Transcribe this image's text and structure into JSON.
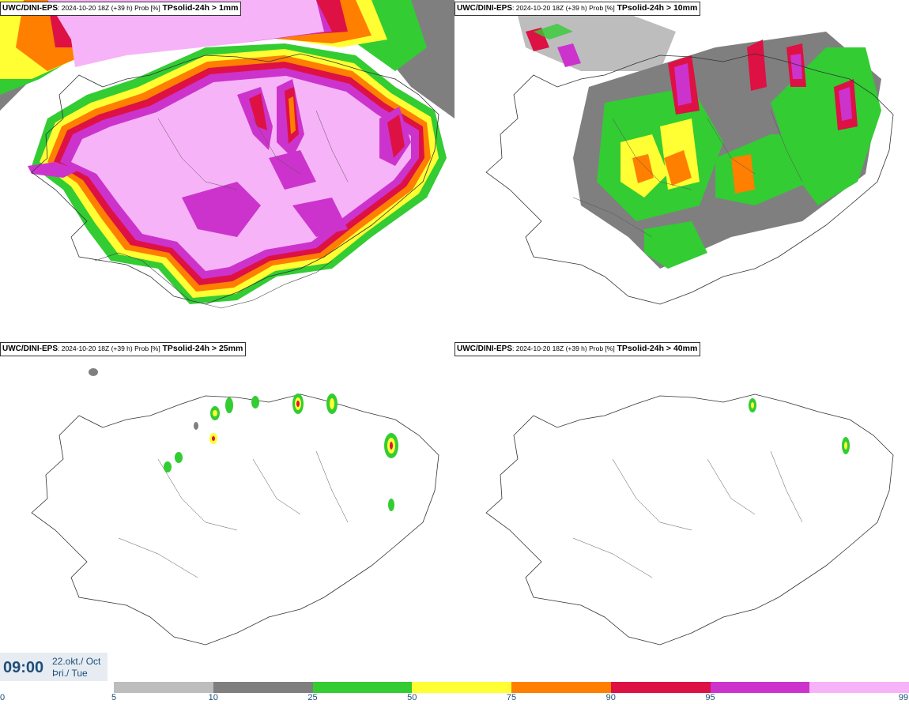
{
  "panels": [
    {
      "model": "UWC/DINI-EPS",
      "meta": ": 2024-10-20 18Z (+39 h) Prob [%]",
      "variable": "TPsolid-24h > 1mm"
    },
    {
      "model": "UWC/DINI-EPS",
      "meta": ": 2024-10-20 18Z (+39 h) Prob [%]",
      "variable": "TPsolid-24h > 10mm"
    },
    {
      "model": "UWC/DINI-EPS",
      "meta": ": 2024-10-20 18Z (+39 h) Prob [%]",
      "variable": "TPsolid-24h > 25mm"
    },
    {
      "model": "UWC/DINI-EPS",
      "meta": ": 2024-10-20 18Z (+39 h) Prob [%]",
      "variable": "TPsolid-24h > 40mm"
    }
  ],
  "valid_time": {
    "time": "09:00",
    "date_line1": "22.okt./ Oct",
    "date_line2": "Þri./ Tue"
  },
  "colorbar": {
    "ticks": [
      "0",
      "5",
      "10",
      "25",
      "50",
      "75",
      "90",
      "95",
      "99"
    ],
    "colors": [
      "#bdbdbd",
      "#7f7f7f",
      "#33cc33",
      "#ffff33",
      "#ff7f00",
      "#dd1144",
      "#cc33cc",
      "#f7b3f7"
    ]
  }
}
